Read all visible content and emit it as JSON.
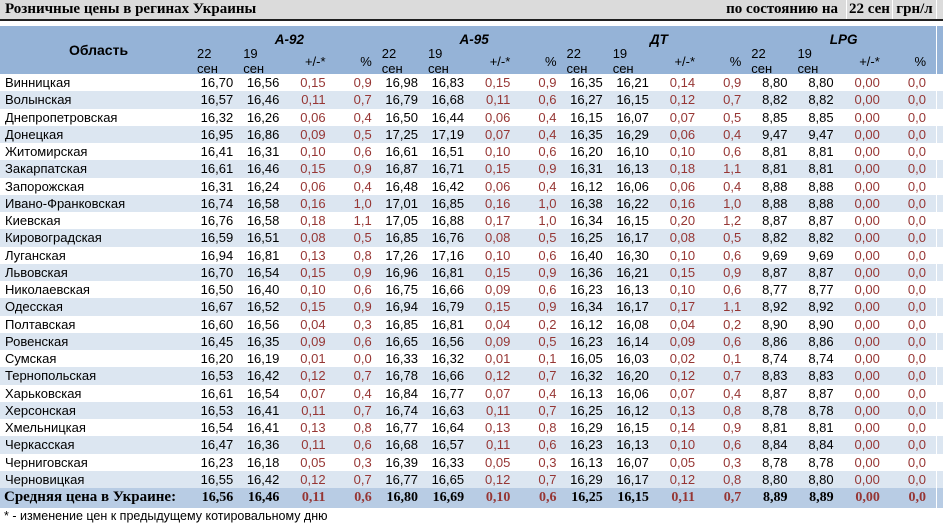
{
  "title_bar": {
    "title": "Розничные цены в регинах Украины",
    "as_of_label": "по состоянию на",
    "as_of_date": "22 сен",
    "unit": "грн/л"
  },
  "table": {
    "region_header": "Область",
    "groups": [
      {
        "name": "А-92"
      },
      {
        "name": "А-95"
      },
      {
        "name": "ДТ"
      },
      {
        "name": "LPG"
      }
    ],
    "subheaders": [
      "22 сен",
      "19 сен",
      "+/-*",
      "%"
    ],
    "rows": [
      {
        "region": "Винницкая",
        "values": [
          "16,70",
          "16,56",
          "0,15",
          "0,9",
          "16,98",
          "16,83",
          "0,15",
          "0,9",
          "16,35",
          "16,21",
          "0,14",
          "0,9",
          "8,80",
          "8,80",
          "0,00",
          "0,0"
        ]
      },
      {
        "region": "Волынская",
        "values": [
          "16,57",
          "16,46",
          "0,11",
          "0,7",
          "16,79",
          "16,68",
          "0,11",
          "0,6",
          "16,27",
          "16,15",
          "0,12",
          "0,7",
          "8,82",
          "8,82",
          "0,00",
          "0,0"
        ]
      },
      {
        "region": "Днепропетровская",
        "values": [
          "16,32",
          "16,26",
          "0,06",
          "0,4",
          "16,50",
          "16,44",
          "0,06",
          "0,4",
          "16,15",
          "16,07",
          "0,07",
          "0,5",
          "8,85",
          "8,85",
          "0,00",
          "0,0"
        ]
      },
      {
        "region": "Донецкая",
        "values": [
          "16,95",
          "16,86",
          "0,09",
          "0,5",
          "17,25",
          "17,19",
          "0,07",
          "0,4",
          "16,35",
          "16,29",
          "0,06",
          "0,4",
          "9,47",
          "9,47",
          "0,00",
          "0,0"
        ]
      },
      {
        "region": "Житомирская",
        "values": [
          "16,41",
          "16,31",
          "0,10",
          "0,6",
          "16,61",
          "16,51",
          "0,10",
          "0,6",
          "16,20",
          "16,10",
          "0,10",
          "0,6",
          "8,81",
          "8,81",
          "0,00",
          "0,0"
        ]
      },
      {
        "region": "Закарпатская",
        "values": [
          "16,61",
          "16,46",
          "0,15",
          "0,9",
          "16,87",
          "16,71",
          "0,15",
          "0,9",
          "16,31",
          "16,13",
          "0,18",
          "1,1",
          "8,81",
          "8,81",
          "0,00",
          "0,0"
        ]
      },
      {
        "region": "Запорожская",
        "values": [
          "16,31",
          "16,24",
          "0,06",
          "0,4",
          "16,48",
          "16,42",
          "0,06",
          "0,4",
          "16,12",
          "16,06",
          "0,06",
          "0,4",
          "8,88",
          "8,88",
          "0,00",
          "0,0"
        ]
      },
      {
        "region": "Ивано-Франковская",
        "values": [
          "16,74",
          "16,58",
          "0,16",
          "1,0",
          "17,01",
          "16,85",
          "0,16",
          "1,0",
          "16,38",
          "16,22",
          "0,16",
          "1,0",
          "8,88",
          "8,88",
          "0,00",
          "0,0"
        ]
      },
      {
        "region": "Киевская",
        "values": [
          "16,76",
          "16,58",
          "0,18",
          "1,1",
          "17,05",
          "16,88",
          "0,17",
          "1,0",
          "16,34",
          "16,15",
          "0,20",
          "1,2",
          "8,87",
          "8,87",
          "0,00",
          "0,0"
        ]
      },
      {
        "region": "Кировоградская",
        "values": [
          "16,59",
          "16,51",
          "0,08",
          "0,5",
          "16,85",
          "16,76",
          "0,08",
          "0,5",
          "16,25",
          "16,17",
          "0,08",
          "0,5",
          "8,82",
          "8,82",
          "0,00",
          "0,0"
        ]
      },
      {
        "region": "Луганская",
        "values": [
          "16,94",
          "16,81",
          "0,13",
          "0,8",
          "17,26",
          "17,16",
          "0,10",
          "0,6",
          "16,40",
          "16,30",
          "0,10",
          "0,6",
          "9,69",
          "9,69",
          "0,00",
          "0,0"
        ]
      },
      {
        "region": "Львовская",
        "values": [
          "16,70",
          "16,54",
          "0,15",
          "0,9",
          "16,96",
          "16,81",
          "0,15",
          "0,9",
          "16,36",
          "16,21",
          "0,15",
          "0,9",
          "8,87",
          "8,87",
          "0,00",
          "0,0"
        ]
      },
      {
        "region": "Николаевская",
        "values": [
          "16,50",
          "16,40",
          "0,10",
          "0,6",
          "16,75",
          "16,66",
          "0,09",
          "0,6",
          "16,23",
          "16,13",
          "0,10",
          "0,6",
          "8,77",
          "8,77",
          "0,00",
          "0,0"
        ]
      },
      {
        "region": "Одесская",
        "values": [
          "16,67",
          "16,52",
          "0,15",
          "0,9",
          "16,94",
          "16,79",
          "0,15",
          "0,9",
          "16,34",
          "16,17",
          "0,17",
          "1,1",
          "8,92",
          "8,92",
          "0,00",
          "0,0"
        ]
      },
      {
        "region": "Полтавская",
        "values": [
          "16,60",
          "16,56",
          "0,04",
          "0,3",
          "16,85",
          "16,81",
          "0,04",
          "0,2",
          "16,12",
          "16,08",
          "0,04",
          "0,2",
          "8,90",
          "8,90",
          "0,00",
          "0,0"
        ]
      },
      {
        "region": "Ровенская",
        "values": [
          "16,45",
          "16,35",
          "0,09",
          "0,6",
          "16,65",
          "16,56",
          "0,09",
          "0,5",
          "16,23",
          "16,14",
          "0,09",
          "0,6",
          "8,86",
          "8,86",
          "0,00",
          "0,0"
        ]
      },
      {
        "region": "Сумская",
        "values": [
          "16,20",
          "16,19",
          "0,01",
          "0,0",
          "16,33",
          "16,32",
          "0,01",
          "0,1",
          "16,05",
          "16,03",
          "0,02",
          "0,1",
          "8,74",
          "8,74",
          "0,00",
          "0,0"
        ]
      },
      {
        "region": "Тернопольская",
        "values": [
          "16,53",
          "16,42",
          "0,12",
          "0,7",
          "16,78",
          "16,66",
          "0,12",
          "0,7",
          "16,32",
          "16,20",
          "0,12",
          "0,7",
          "8,83",
          "8,83",
          "0,00",
          "0,0"
        ]
      },
      {
        "region": "Харьковская",
        "values": [
          "16,61",
          "16,54",
          "0,07",
          "0,4",
          "16,84",
          "16,77",
          "0,07",
          "0,4",
          "16,13",
          "16,06",
          "0,07",
          "0,4",
          "8,87",
          "8,87",
          "0,00",
          "0,0"
        ]
      },
      {
        "region": "Херсонская",
        "values": [
          "16,53",
          "16,41",
          "0,11",
          "0,7",
          "16,74",
          "16,63",
          "0,11",
          "0,7",
          "16,25",
          "16,12",
          "0,13",
          "0,8",
          "8,78",
          "8,78",
          "0,00",
          "0,0"
        ]
      },
      {
        "region": "Хмельницкая",
        "values": [
          "16,54",
          "16,41",
          "0,13",
          "0,8",
          "16,77",
          "16,64",
          "0,13",
          "0,8",
          "16,29",
          "16,15",
          "0,14",
          "0,9",
          "8,81",
          "8,81",
          "0,00",
          "0,0"
        ]
      },
      {
        "region": "Черкасская",
        "values": [
          "16,47",
          "16,36",
          "0,11",
          "0,6",
          "16,68",
          "16,57",
          "0,11",
          "0,6",
          "16,23",
          "16,13",
          "0,10",
          "0,6",
          "8,84",
          "8,84",
          "0,00",
          "0,0"
        ]
      },
      {
        "region": "Черниговская",
        "values": [
          "16,23",
          "16,18",
          "0,05",
          "0,3",
          "16,39",
          "16,33",
          "0,05",
          "0,3",
          "16,13",
          "16,07",
          "0,05",
          "0,3",
          "8,78",
          "8,78",
          "0,00",
          "0,0"
        ]
      },
      {
        "region": "Черновицкая",
        "values": [
          "16,55",
          "16,42",
          "0,12",
          "0,7",
          "16,77",
          "16,65",
          "0,12",
          "0,7",
          "16,29",
          "16,17",
          "0,12",
          "0,8",
          "8,80",
          "8,80",
          "0,00",
          "0,0"
        ]
      }
    ],
    "average_row": {
      "label": "Средняя цена в Украине:",
      "values": [
        "16,56",
        "16,46",
        "0,11",
        "0,6",
        "16,80",
        "16,69",
        "0,10",
        "0,6",
        "16,25",
        "16,15",
        "0,11",
        "0,7",
        "8,89",
        "8,89",
        "0,00",
        "0,0"
      ]
    }
  },
  "footnote": "* - изменение цен к предыдущему котировальному дню",
  "colors": {
    "header_bg": "#95B3D7",
    "stripe_bg": "#DCE6F1",
    "average_bg": "#B8CCE4",
    "change_text": "#963634",
    "titlebar_bg": "#DBDBDB",
    "titlebar_border": "#1F1F1F"
  }
}
